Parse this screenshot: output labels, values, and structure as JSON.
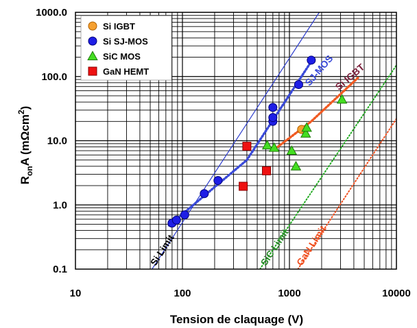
{
  "chart_data": {
    "type": "scatter",
    "xscale": "log",
    "yscale": "log",
    "xlim": [
      10,
      10000
    ],
    "ylim": [
      0.1,
      1000
    ],
    "grid": true,
    "legend_position": "top-left",
    "xlabel": "Tension de claquage (V)",
    "ylabel": {
      "base": "R",
      "sub": "on",
      "mid": "A  (mΩcm",
      "sup": "2",
      "end": ")"
    },
    "x_ticks": [
      {
        "value": 10,
        "label": "10"
      },
      {
        "value": 100,
        "label": "100"
      },
      {
        "value": 1000,
        "label": "1000"
      },
      {
        "value": 10000,
        "label": "10000"
      }
    ],
    "y_ticks": [
      {
        "value": 0.1,
        "label": "0.1"
      },
      {
        "value": 1,
        "label": "1.0"
      },
      {
        "value": 10,
        "label": "10.0"
      },
      {
        "value": 100,
        "label": "100.0"
      },
      {
        "value": 1000,
        "label": "1000.0"
      }
    ],
    "series": [
      {
        "name": "Si  IGBT",
        "marker": "circle",
        "color": "#F5A030",
        "edge": "#B06000",
        "points": [
          [
            1300,
            15.0
          ]
        ]
      },
      {
        "name": "Si  SJ-MOS",
        "marker": "circle",
        "color": "#1E1EE6",
        "edge": "#00007A",
        "points": [
          [
            80,
            0.52
          ],
          [
            88,
            0.58
          ],
          [
            105,
            0.7
          ],
          [
            160,
            1.5
          ],
          [
            215,
            2.4
          ],
          [
            700,
            20
          ],
          [
            700,
            23
          ],
          [
            700,
            33
          ],
          [
            1220,
            75
          ],
          [
            1600,
            180
          ]
        ]
      },
      {
        "name": "SiC  MOS",
        "marker": "triangle",
        "color": "#44DD22",
        "edge": "#1E7A0A",
        "points": [
          [
            620,
            8.5
          ],
          [
            720,
            7.8
          ],
          [
            1050,
            7.0
          ],
          [
            1150,
            4.0
          ],
          [
            1420,
            13.0
          ],
          [
            1450,
            16.0
          ],
          [
            3100,
            44.0
          ]
        ]
      },
      {
        "name": "GaN HEMT",
        "marker": "square",
        "color": "#EE1111",
        "edge": "#8A0000",
        "points": [
          [
            370,
            1.95
          ],
          [
            400,
            8.2
          ],
          [
            610,
            3.4
          ]
        ]
      }
    ],
    "lines": [
      {
        "label": "Si Limit",
        "color": "#2B3BCC",
        "style": "solid",
        "points": [
          [
            52,
            0.1
          ],
          [
            1900,
            1000
          ]
        ],
        "label_color": "#000000",
        "label_at": [
          56,
          0.11
        ]
      },
      {
        "label": "SiC Limit",
        "color": "#22AA22",
        "style": "dotted",
        "points": [
          [
            530,
            0.1
          ],
          [
            10000,
            150
          ]
        ],
        "label_color": "#2A8A2A",
        "label_at": [
          600,
          0.11
        ]
      },
      {
        "label": "GaN Limit",
        "color": "#F05020",
        "style": "dotted",
        "points": [
          [
            1200,
            0.1
          ],
          [
            10000,
            22
          ]
        ],
        "label_color": "#F05020",
        "label_at": [
          1300,
          0.11
        ]
      },
      {
        "label": "SJ-MOS",
        "color": "#3A4AD8",
        "style": "dotted",
        "points": [
          [
            75,
            0.48
          ],
          [
            400,
            5
          ],
          [
            1700,
            200
          ]
        ],
        "label_color": "#3A4AD8",
        "label_at": [
          1540,
          70
        ]
      },
      {
        "label": "Si  IGBT",
        "color": "#F05A22",
        "style": "dotted",
        "points": [
          [
            700,
            7
          ],
          [
            1600,
            20
          ],
          [
            4500,
            100
          ]
        ],
        "label_color": "#7A1E3A",
        "label_at": [
          2900,
          60
        ]
      }
    ]
  }
}
